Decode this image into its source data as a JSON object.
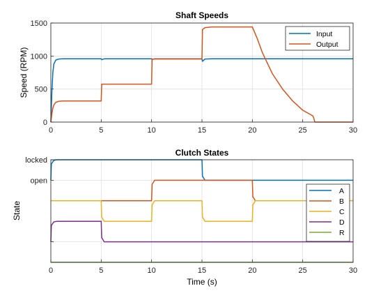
{
  "chart_data": [
    {
      "type": "line",
      "title": "Shaft Speeds",
      "xlabel": "",
      "ylabel": "Speed (RPM)",
      "xlim": [
        0,
        30
      ],
      "ylim": [
        0,
        1500
      ],
      "xticks": [
        0,
        5,
        10,
        15,
        20,
        25,
        30
      ],
      "yticks": [
        0,
        500,
        1000,
        1500
      ],
      "grid": true,
      "legend_location": "top-right",
      "series": [
        {
          "name": "Input",
          "color": "#0072BD",
          "x": [
            0,
            0.1,
            0.2,
            0.3,
            0.5,
            0.8,
            1.2,
            5,
            5.05,
            5.3,
            10,
            10.05,
            10.3,
            15,
            15.05,
            15.3,
            16,
            30
          ],
          "y": [
            0,
            450,
            750,
            880,
            940,
            955,
            958,
            958,
            945,
            958,
            958,
            948,
            958,
            958,
            920,
            955,
            958,
            958
          ]
        },
        {
          "name": "Output",
          "color": "#D95319",
          "x": [
            0,
            0.1,
            0.2,
            0.3,
            0.5,
            0.8,
            1.2,
            5,
            5.05,
            10,
            10.05,
            15,
            15.05,
            15.3,
            16,
            20,
            20.5,
            21,
            22,
            23,
            24,
            25,
            26,
            26.1,
            26.2,
            30
          ],
          "y": [
            0,
            120,
            210,
            260,
            300,
            315,
            320,
            320,
            575,
            575,
            955,
            955,
            1400,
            1430,
            1440,
            1440,
            1260,
            1050,
            730,
            500,
            320,
            180,
            95,
            60,
            0,
            0
          ]
        }
      ]
    },
    {
      "type": "line",
      "title": "Clutch States",
      "xlabel": "Time (s)",
      "ylabel": "State",
      "xlim": [
        0,
        30
      ],
      "ylim": [
        0,
        5
      ],
      "xticks": [
        0,
        5,
        10,
        15,
        20,
        25,
        30
      ],
      "ytick_values": [
        1,
        4,
        5
      ],
      "ytick_labels": [
        "",
        "open",
        "locked"
      ],
      "grid": true,
      "legend_location": "right",
      "series": [
        {
          "name": "A",
          "color": "#0072BD",
          "x": [
            0,
            0.05,
            0.3,
            0.6,
            15,
            15.05,
            15.3,
            30
          ],
          "y": [
            4,
            4.8,
            4.97,
            5,
            5,
            4.2,
            4,
            4
          ]
        },
        {
          "name": "B",
          "color": "#D95319",
          "x": [
            0,
            10,
            10.05,
            10.3,
            20,
            20.05,
            20.3,
            30
          ],
          "y": [
            3,
            3,
            3.8,
            4,
            4,
            3.2,
            3,
            3
          ]
        },
        {
          "name": "C",
          "color": "#EDB120",
          "x": [
            0,
            5,
            5.05,
            5.3,
            10,
            10.05,
            10.3,
            15,
            15.05,
            15.3,
            20,
            20.05,
            20.3,
            30
          ],
          "y": [
            3,
            3,
            2.2,
            2,
            2,
            2.8,
            3,
            3,
            2.2,
            2,
            2,
            2.8,
            3,
            3
          ]
        },
        {
          "name": "D",
          "color": "#7E2F8E",
          "x": [
            0,
            0.05,
            0.3,
            0.6,
            5,
            5.05,
            5.3,
            30
          ],
          "y": [
            1,
            1.8,
            1.97,
            2,
            2,
            1.2,
            1,
            1
          ]
        },
        {
          "name": "R",
          "color": "#77AC30",
          "x": [
            0,
            30
          ],
          "y": [
            0,
            0
          ]
        }
      ]
    }
  ]
}
